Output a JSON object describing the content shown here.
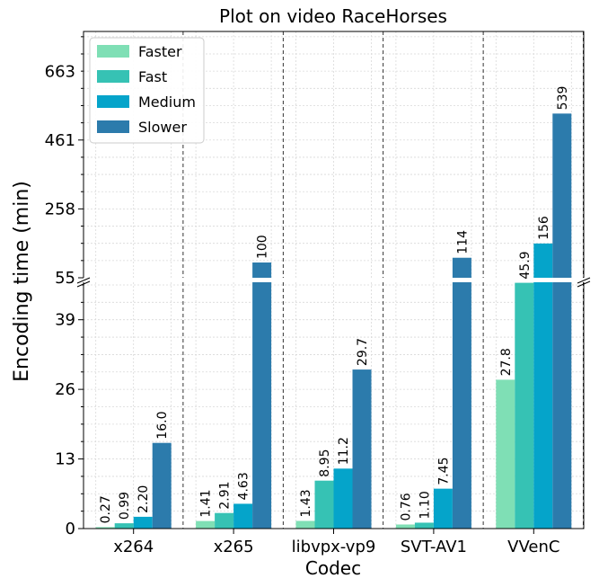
{
  "chart_data": {
    "type": "bar",
    "title": "Plot on video RaceHorses",
    "xlabel": "Codec",
    "ylabel": "Encoding time (min)",
    "categories": [
      "x264",
      "x265",
      "libvpx-vp9",
      "SVT-AV1",
      "VVenC"
    ],
    "series": [
      {
        "name": "Faster",
        "color": "#7fdfb5",
        "values": [
          0.27,
          1.41,
          1.43,
          0.76,
          27.8
        ],
        "labels": [
          "0.27",
          "1.41",
          "1.43",
          "0.76",
          "27.8"
        ]
      },
      {
        "name": "Fast",
        "color": "#36c2b4",
        "values": [
          0.99,
          2.91,
          8.95,
          1.1,
          45.9
        ],
        "labels": [
          "0.99",
          "2.91",
          "8.95",
          "1.10",
          "45.9"
        ]
      },
      {
        "name": "Medium",
        "color": "#05a4ca",
        "values": [
          2.2,
          4.63,
          11.2,
          7.45,
          156
        ],
        "labels": [
          "2.20",
          "4.63",
          "11.2",
          "7.45",
          "156"
        ]
      },
      {
        "name": "Slower",
        "color": "#2c7bac",
        "values": [
          16.0,
          100,
          29.7,
          114,
          539
        ],
        "labels": [
          "16.0",
          "100",
          "29.7",
          "114",
          "539"
        ]
      }
    ],
    "broken_axis": {
      "lower": {
        "ylim": [
          0,
          46
        ],
        "ticks": [
          0,
          13,
          26,
          39
        ],
        "tick_labels": [
          "0",
          "13",
          "26",
          "39"
        ]
      },
      "upper": {
        "ylim": [
          55,
          781
        ],
        "ticks": [
          55,
          258,
          461,
          663
        ],
        "tick_labels": [
          "55",
          "258",
          "461",
          "663"
        ]
      }
    },
    "legend": "top-left",
    "grid": true
  }
}
